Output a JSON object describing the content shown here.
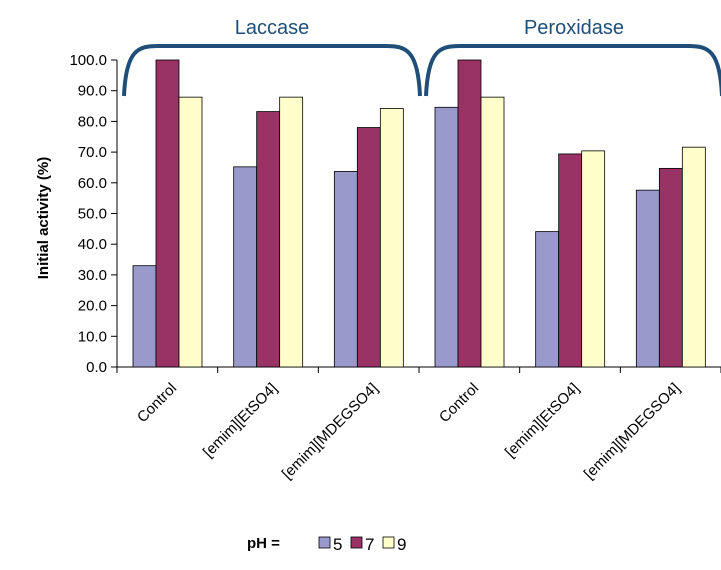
{
  "chart_data": {
    "type": "bar",
    "ylabel": "Initial activity (%)",
    "ylim": [
      0,
      100
    ],
    "ytick_step": 10,
    "categories": [
      "Control",
      "[emim][EtSO4]",
      "[emim][MDEGSO4]",
      "Control",
      "[emim][EtSO4]",
      "[emim][MDEGSO4]"
    ],
    "groups": [
      {
        "label": "Laccase",
        "categories": [
          0,
          1,
          2
        ]
      },
      {
        "label": "Peroxidase",
        "categories": [
          3,
          4,
          5
        ]
      }
    ],
    "legend_title": "pH =",
    "legend_position": "bottom",
    "series": [
      {
        "name": "5",
        "color": "#9999cc",
        "values": [
          33.0,
          65.2,
          63.7,
          84.6,
          44.1,
          57.6
        ]
      },
      {
        "name": "7",
        "color": "#993366",
        "values": [
          100.0,
          83.2,
          78.0,
          100.0,
          69.4,
          64.7
        ]
      },
      {
        "name": "9",
        "color": "#ffffcc",
        "values": [
          87.9,
          87.9,
          84.2,
          87.9,
          70.4,
          71.6
        ]
      }
    ],
    "accent_color": "#1f4e79",
    "grid": false
  }
}
